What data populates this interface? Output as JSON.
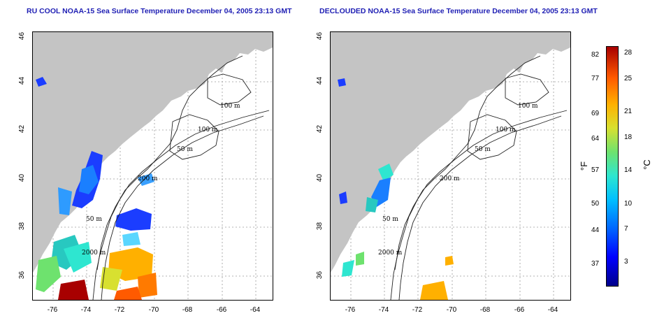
{
  "titles": {
    "left": "RU COOL NOAA-15 Sea Surface Temperature December 04, 2005 23:13 GMT",
    "right": "DECLOUDED NOAA-15 Sea Surface Temperature December 04, 2005 23:13 GMT"
  },
  "axes": {
    "x_ticks": [
      "-76",
      "-74",
      "-72",
      "-70",
      "-68",
      "-66",
      "-64"
    ],
    "y_ticks": [
      "36",
      "38",
      "40",
      "42",
      "44",
      "46"
    ]
  },
  "contours": {
    "labels_left": [
      "100 m",
      "100 m",
      "50 m",
      "200 m",
      "50 m",
      "2000 m"
    ],
    "labels_right": [
      "100 m",
      "100 m",
      "50 m",
      "200 m",
      "50 m",
      "2000 m"
    ]
  },
  "colorbar": {
    "fahrenheit_ticks": [
      "82",
      "77",
      "69",
      "64",
      "57",
      "50",
      "44",
      "37"
    ],
    "celsius_ticks": [
      "28",
      "25",
      "21",
      "18",
      "14",
      "10",
      "7",
      "3"
    ],
    "unit_f": "°F",
    "unit_c": "°C"
  },
  "colors": {
    "land": "#c4c4c4",
    "title": "#1f1fb4",
    "grid": "#9a9a9a"
  }
}
